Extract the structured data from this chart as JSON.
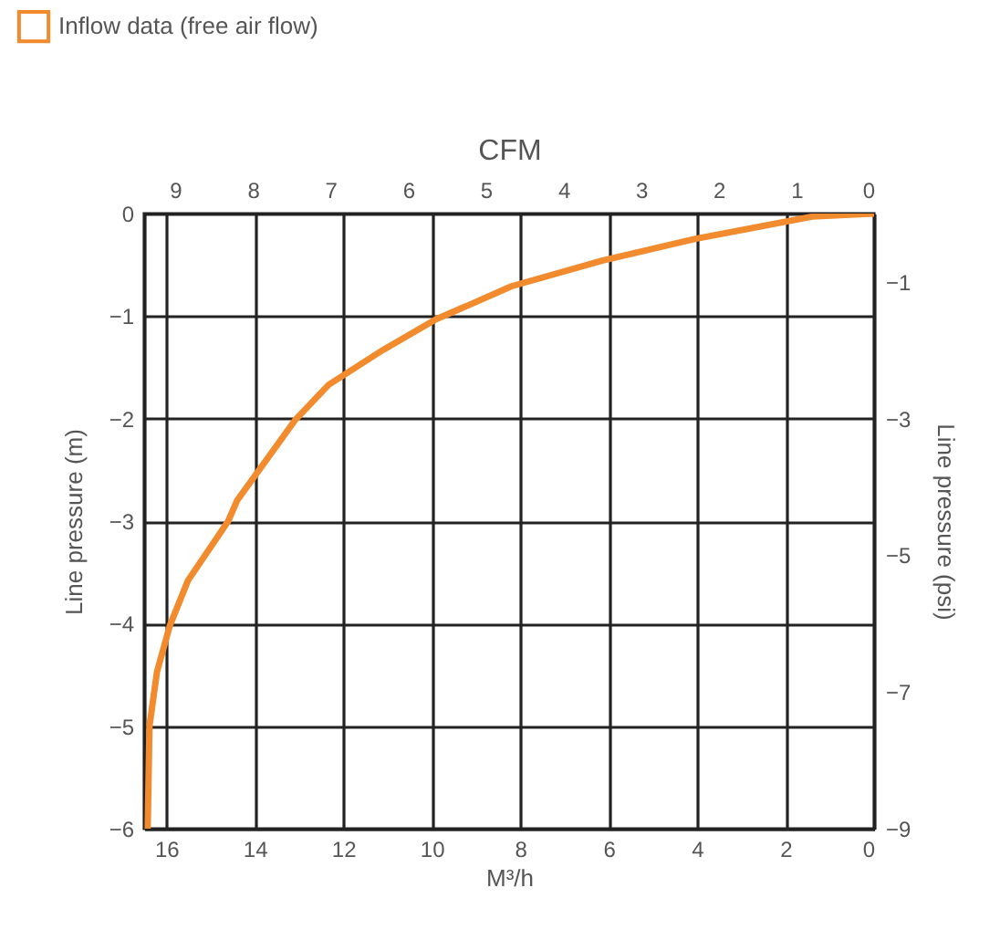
{
  "chart_data": {
    "type": "line",
    "xlabel": "M³/h",
    "ylabel": "Line pressure (m)",
    "y2label": "Line pressure (psi)",
    "x2label": "CFM",
    "x": [
      0,
      1.4,
      4.08,
      6.15,
      8.2,
      9.2,
      9.9,
      11.1,
      12.33,
      13.08,
      14.4,
      14.6,
      15.51,
      15.92,
      16.21,
      16.38,
      16.42
    ],
    "series": [
      {
        "name": "Inflow data (free air flow)",
        "color": "#f28a2e",
        "values": [
          0,
          -0.03,
          -0.25,
          -0.46,
          -0.71,
          -0.9,
          -1.03,
          -1.33,
          -1.67,
          -2.01,
          -2.8,
          -3.0,
          -3.58,
          -4.02,
          -4.47,
          -5.0,
          -6.0
        ]
      }
    ],
    "xlim": [
      16.5,
      0
    ],
    "xticks": [
      16,
      14,
      12,
      10,
      8,
      6,
      4,
      2,
      0
    ],
    "ylim": [
      -6,
      0
    ],
    "yticks": [
      0,
      -1,
      -2,
      -3,
      -4,
      -5,
      -6
    ],
    "x2lim": [
      9.4,
      0
    ],
    "x2ticks": [
      9,
      8,
      7,
      6,
      5,
      4,
      3,
      2,
      1,
      0
    ],
    "y2lim": [
      -9,
      0
    ],
    "y2ticks": [
      -1,
      -3,
      -5,
      -7,
      -9
    ],
    "grid": true,
    "legend": "top left"
  }
}
